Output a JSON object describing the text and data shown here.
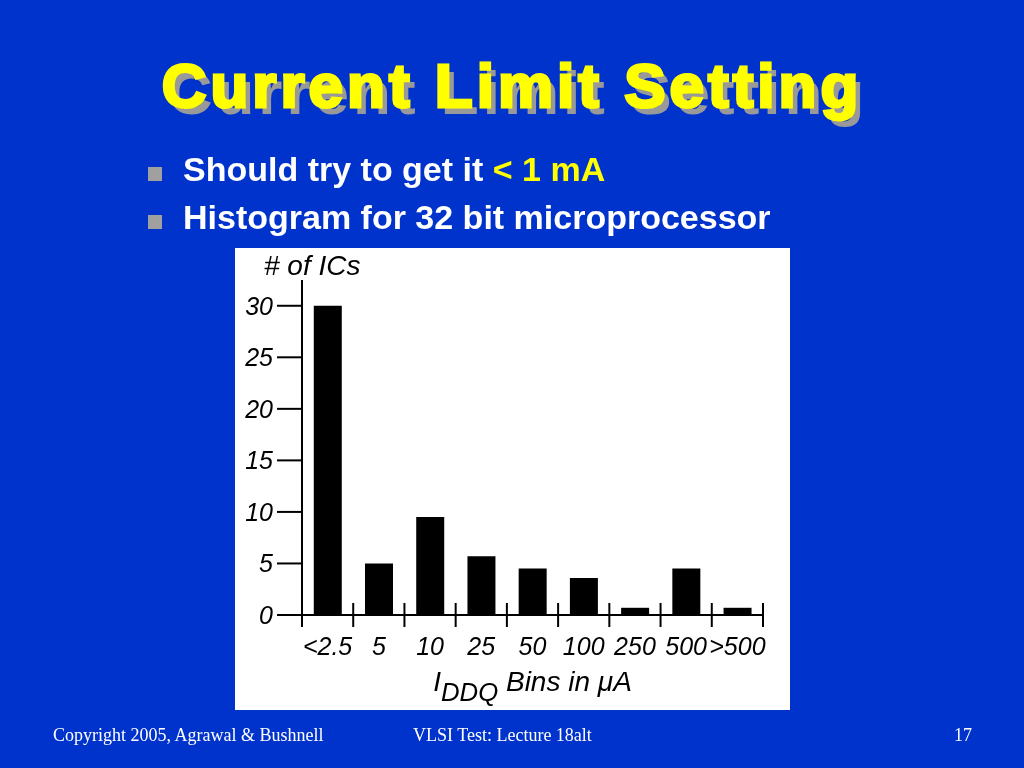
{
  "chart_data": {
    "type": "bar",
    "title": "Current Limit Setting",
    "annotations": [
      "Should try to get it",
      "< 1 mA",
      "Histogram for 32 bit microprocessor",
      "Copyright 2005, Agrawal & Bushnell",
      "VLSI Test: Lecture 18alt",
      "17"
    ],
    "xlabel": "I$_{DDQ}$ Bins in μA",
    "ylabel": "# of ICs",
    "categories": [
      "<2.5",
      "5",
      "10",
      "25",
      "50",
      "100",
      "250",
      "500",
      ">500"
    ],
    "values": [
      30,
      5,
      9.5,
      5.7,
      4.5,
      3.6,
      0.7,
      4.5,
      0.7
    ],
    "color": "#000000",
    "ylim": [
      0,
      32.5
    ],
    "yticks": [
      0,
      5,
      10,
      15,
      20,
      25,
      30
    ]
  }
}
